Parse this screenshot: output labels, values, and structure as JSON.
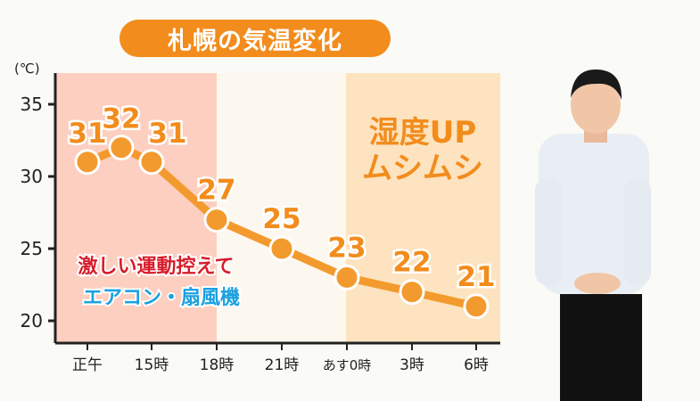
{
  "title": "札幌の気温変化",
  "colors": {
    "line": "#f39a2e",
    "point_fill": "#f39a2e",
    "point_stroke": "#ffffff",
    "label": "#f28c1c",
    "band_hot": "#fccfc0",
    "band_mid": "#fdf8ef",
    "band_humid": "#fde3bf",
    "warning_red": "#d81b2a",
    "warning_blue": "#1aa0e0",
    "axis": "#222222"
  },
  "chart_data": {
    "type": "line",
    "title": "札幌の気温変化",
    "ylabel": "(℃)",
    "xlabel": "",
    "ylim": [
      20,
      35
    ],
    "yticks": [
      20,
      25,
      30,
      35
    ],
    "x_ticklabels": [
      "正午",
      "15時",
      "18時",
      "21時",
      "あす0時",
      "3時",
      "6時"
    ],
    "points": [
      {
        "time": "12時",
        "value": 31
      },
      {
        "time": "13時30分",
        "value": 32
      },
      {
        "time": "15時",
        "value": 31
      },
      {
        "time": "18時",
        "value": 27
      },
      {
        "time": "21時",
        "value": 25
      },
      {
        "time": "あす0時",
        "value": 23
      },
      {
        "time": "3時",
        "value": 22
      },
      {
        "time": "6時",
        "value": 21
      }
    ],
    "annotations": {
      "humid": [
        "湿度UP",
        "ムシムシ"
      ],
      "warning_line1": "激しい運動控えて",
      "warning_line2": "エアコン・扇風機"
    },
    "grid": false
  }
}
